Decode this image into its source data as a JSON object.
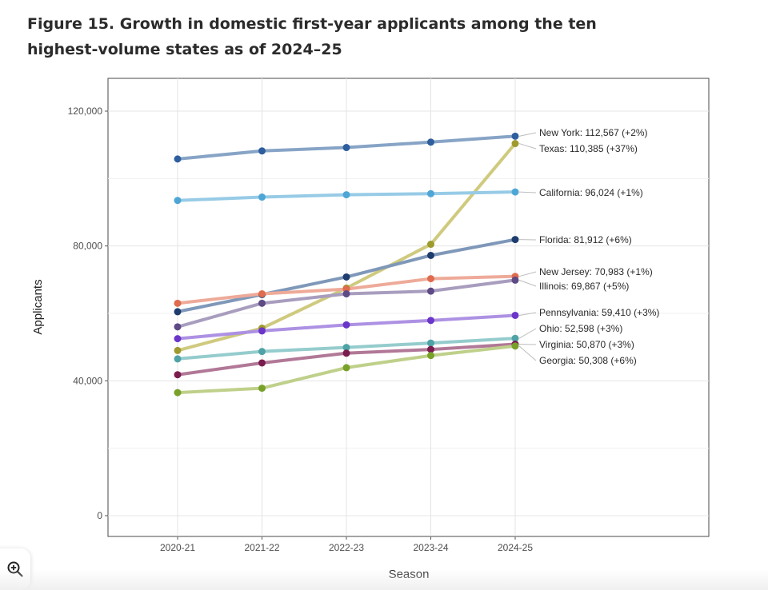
{
  "title": "Figure 15. Growth in domestic first-year applicants among the ten highest-volume states as of 2024–25",
  "zoom_button": {
    "icon": "zoom-in-icon"
  },
  "chart_data": {
    "type": "line",
    "title": "Figure 15. Growth in domestic first-year applicants among the ten highest-volume states as of 2024–25",
    "xlabel": "Season",
    "ylabel": "Applicants",
    "categories": [
      "2020-21",
      "2021-22",
      "2022-23",
      "2023-24",
      "2024-25"
    ],
    "ylim": [
      -6000,
      130000
    ],
    "yticks": [
      0,
      40000,
      80000,
      120000
    ],
    "ytick_labels": [
      "0",
      "40,000",
      "80,000",
      "120,000"
    ],
    "grid": true,
    "legend": "direct end labels at right",
    "series": [
      {
        "name": "New York",
        "values": [
          105800,
          108200,
          109200,
          110800,
          112567
        ],
        "color": "#2e5e9e",
        "line_color": "#87a4c6",
        "label": "New York: 112,567 (+2%)"
      },
      {
        "name": "Texas",
        "values": [
          49000,
          55600,
          67500,
          80500,
          110385
        ],
        "color": "#9e9a2e",
        "line_color": "#cfca7e",
        "label": "Texas: 110,385 (+37%)"
      },
      {
        "name": "California",
        "values": [
          93500,
          94500,
          95200,
          95500,
          96024
        ],
        "color": "#4ea6d6",
        "line_color": "#97cbe6",
        "label": "California: 96,024 (+1%)"
      },
      {
        "name": "Florida",
        "values": [
          60500,
          65600,
          70800,
          77200,
          81912
        ],
        "color": "#1e3c6e",
        "line_color": "#7f98b9",
        "label": "Florida: 81,912 (+6%)"
      },
      {
        "name": "New Jersey",
        "values": [
          63000,
          65800,
          67200,
          70300,
          70983
        ],
        "color": "#e06b4e",
        "line_color": "#eeaa99",
        "label": "New Jersey: 70,983 (+1%)"
      },
      {
        "name": "Illinois",
        "values": [
          56000,
          63000,
          65800,
          66600,
          69867
        ],
        "color": "#5e4a85",
        "line_color": "#a89dbe",
        "label": "Illinois: 69,867 (+5%)"
      },
      {
        "name": "Pennsylvania",
        "values": [
          52500,
          54800,
          56600,
          57900,
          59410
        ],
        "color": "#6b35c9",
        "line_color": "#ad91e3",
        "label": "Pennsylvania: 59,410 (+3%)"
      },
      {
        "name": "Ohio",
        "values": [
          46500,
          48700,
          49900,
          51200,
          52598
        ],
        "color": "#4fa3a6",
        "line_color": "#95cccd",
        "label": "Ohio: 52,598 (+3%)"
      },
      {
        "name": "Virginia",
        "values": [
          41800,
          45300,
          48200,
          49300,
          50870
        ],
        "color": "#7a1c4e",
        "line_color": "#b17897",
        "label": "Virginia: 50,870 (+3%)"
      },
      {
        "name": "Georgia",
        "values": [
          36500,
          37800,
          43900,
          47500,
          50308
        ],
        "color": "#79a12a",
        "line_color": "#bfd08a",
        "label": "Georgia: 50,308 (+6%)"
      }
    ]
  }
}
